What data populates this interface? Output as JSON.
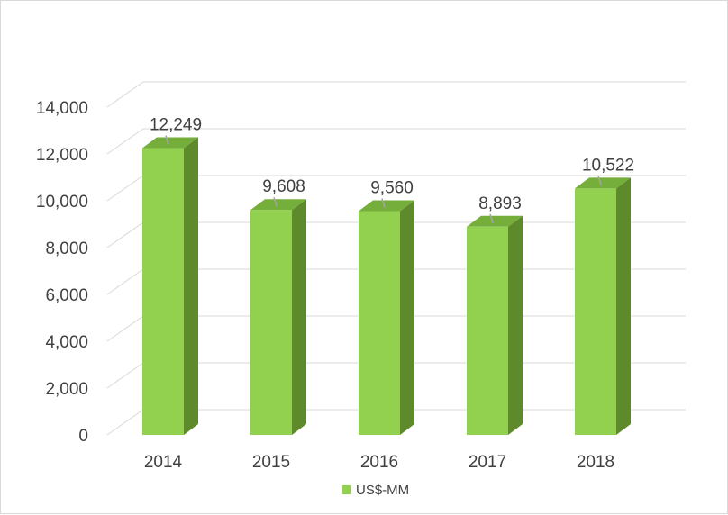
{
  "chart_data": {
    "type": "bar",
    "style": "3d-column",
    "categories": [
      "2014",
      "2015",
      "2016",
      "2017",
      "2018"
    ],
    "series": [
      {
        "name": "US$-MM",
        "values": [
          12249,
          9608,
          9560,
          8893,
          10522
        ]
      }
    ],
    "data_labels": [
      "12,249",
      "9,608",
      "9,560",
      "8,893",
      "10,522"
    ],
    "y_ticks": [
      "0",
      "2,000",
      "4,000",
      "6,000",
      "8,000",
      "10,000",
      "12,000",
      "14,000"
    ],
    "ylim": [
      0,
      14000
    ],
    "grid": true,
    "legend_position": "bottom",
    "colors": {
      "front": "#92d050",
      "side": "#5e8a2c",
      "top": "#76ae3c",
      "grid": "#d9d9d9",
      "text": "#404040"
    }
  }
}
